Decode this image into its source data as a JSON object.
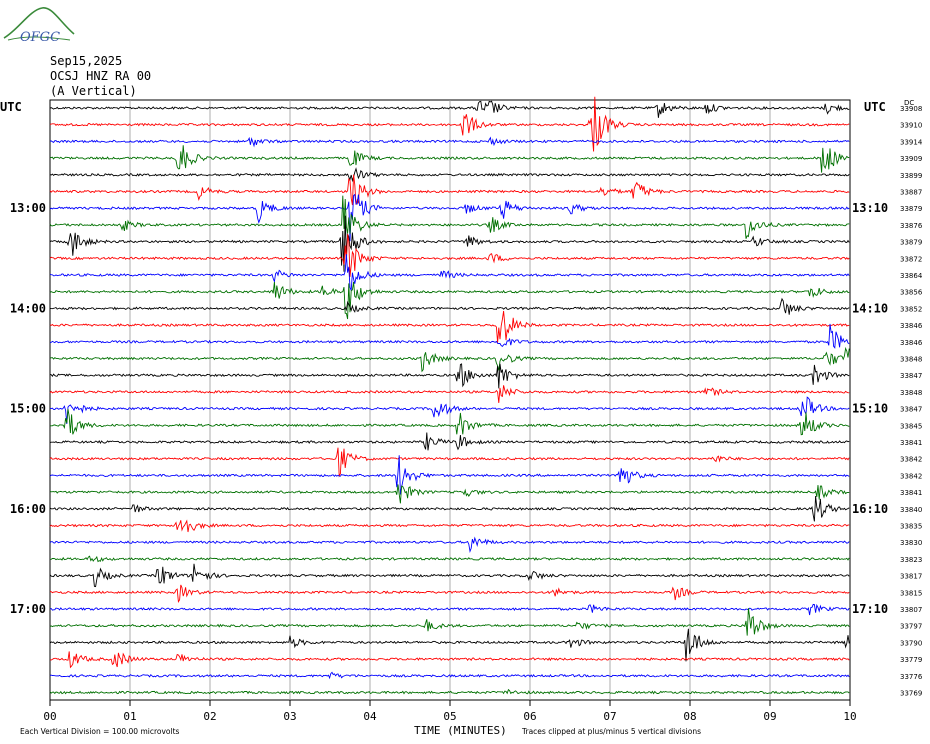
{
  "logo": {
    "text": "OFGC"
  },
  "header": {
    "date": "Sep15,2025",
    "station": "OCSJ HNZ RA 00",
    "component": "(A Vertical)"
  },
  "left_axis_title": "UTC",
  "right_axis_title": "UTC",
  "right_column_label": "DC",
  "footer": {
    "xlabel": "TIME (MINUTES)",
    "vertical_division": "Each Vertical Division =  100.00 microvolts",
    "clip_note": "Traces clipped at plus/minus 5 vertical divisions"
  },
  "colors": {
    "trace_cycle": [
      "#000000",
      "#ff0000",
      "#0000ff",
      "#007000"
    ],
    "grid": "#999999"
  },
  "chart_data": {
    "type": "line",
    "title": "",
    "xlabel": "TIME (MINUTES)",
    "xlim": [
      0,
      10
    ],
    "x_ticks": [
      "00",
      "01",
      "02",
      "03",
      "04",
      "05",
      "06",
      "07",
      "08",
      "09",
      "10"
    ],
    "trace_count": 36,
    "minutes_per_trace": 10,
    "left_time_labels": [
      {
        "trace": 6,
        "label": "13:00"
      },
      {
        "trace": 12,
        "label": "14:00"
      },
      {
        "trace": 18,
        "label": "15:00"
      },
      {
        "trace": 24,
        "label": "16:00"
      },
      {
        "trace": 30,
        "label": "17:00"
      }
    ],
    "right_time_labels": [
      {
        "trace": 6,
        "label": "13:10"
      },
      {
        "trace": 12,
        "label": "14:10"
      },
      {
        "trace": 18,
        "label": "15:10"
      },
      {
        "trace": 24,
        "label": "16:10"
      },
      {
        "trace": 30,
        "label": "17:10"
      }
    ],
    "dc_offsets": [
      "33908",
      "33910",
      "33914",
      "33909",
      "33899",
      "33887",
      "33879",
      "33876",
      "33879",
      "33872",
      "33864",
      "33856",
      "33852",
      "33846",
      "33846",
      "33848",
      "33847",
      "33848",
      "33847",
      "33845",
      "33841",
      "33842",
      "33842",
      "33841",
      "33840",
      "33835",
      "33830",
      "33823",
      "33817",
      "33815",
      "33807",
      "33797",
      "33790",
      "33779",
      "33776",
      "33769"
    ],
    "events": [
      [
        [
          5.35,
          1.2
        ],
        [
          5.5,
          0.8
        ],
        [
          7.6,
          1.2
        ],
        [
          8.2,
          0.8
        ],
        [
          9.7,
          0.8
        ]
      ],
      [
        [
          5.15,
          2.5
        ],
        [
          6.8,
          3.6
        ],
        [
          6.75,
          1.2
        ]
      ],
      [
        [
          2.5,
          0.7
        ],
        [
          5.5,
          0.5
        ]
      ],
      [
        [
          1.6,
          3.0
        ],
        [
          9.65,
          3.2
        ],
        [
          3.75,
          1.5
        ]
      ],
      [
        [
          3.75,
          1.5
        ]
      ],
      [
        [
          1.85,
          1.0
        ],
        [
          3.75,
          3.5
        ],
        [
          7.3,
          1.8
        ],
        [
          6.9,
          0.8
        ]
      ],
      [
        [
          2.6,
          1.8
        ],
        [
          3.75,
          4.5
        ],
        [
          5.65,
          1.5
        ],
        [
          6.5,
          0.8
        ],
        [
          5.2,
          0.7
        ]
      ],
      [
        [
          3.65,
          5.0
        ],
        [
          5.5,
          1.2
        ],
        [
          8.7,
          2.0
        ],
        [
          0.9,
          0.8
        ]
      ],
      [
        [
          0.25,
          2.4
        ],
        [
          3.65,
          5.0
        ],
        [
          5.2,
          1.0
        ],
        [
          8.8,
          0.8
        ]
      ],
      [
        [
          3.7,
          4.0
        ],
        [
          5.5,
          0.8
        ]
      ],
      [
        [
          3.7,
          3.5
        ],
        [
          4.9,
          0.7
        ],
        [
          2.8,
          0.8
        ]
      ],
      [
        [
          3.7,
          4.0
        ],
        [
          2.8,
          1.6
        ],
        [
          3.4,
          0.8
        ],
        [
          9.5,
          1.0
        ]
      ],
      [
        [
          9.15,
          1.5
        ],
        [
          3.7,
          0.8
        ]
      ],
      [
        [
          5.6,
          4.5
        ]
      ],
      [
        [
          9.75,
          2.2
        ],
        [
          5.6,
          1.2
        ]
      ],
      [
        [
          4.65,
          1.7
        ],
        [
          9.7,
          1.5
        ],
        [
          9.95,
          2.0
        ],
        [
          5.6,
          1.5
        ]
      ],
      [
        [
          9.55,
          1.6
        ],
        [
          5.1,
          2.2
        ],
        [
          5.6,
          2.0
        ]
      ],
      [
        [
          8.2,
          0.8
        ],
        [
          5.6,
          1.5
        ]
      ],
      [
        [
          0.2,
          2.2
        ],
        [
          4.8,
          2.0
        ],
        [
          9.4,
          2.5
        ]
      ],
      [
        [
          0.2,
          2.5
        ],
        [
          9.4,
          2.6
        ],
        [
          5.1,
          2.0
        ]
      ],
      [
        [
          4.7,
          1.2
        ],
        [
          5.1,
          1.0
        ]
      ],
      [
        [
          3.6,
          2.4
        ],
        [
          8.3,
          0.5
        ]
      ],
      [
        [
          4.35,
          3.2
        ],
        [
          7.1,
          2.6
        ]
      ],
      [
        [
          4.35,
          2.0
        ],
        [
          5.15,
          0.8
        ],
        [
          9.6,
          1.0
        ]
      ],
      [
        [
          9.55,
          2.4
        ],
        [
          1.0,
          0.8
        ]
      ],
      [
        [
          1.6,
          2.8
        ]
      ],
      [
        [
          5.25,
          1.2
        ]
      ],
      [
        [
          0.5,
          0.5
        ]
      ],
      [
        [
          0.55,
          1.5
        ],
        [
          1.35,
          1.8
        ],
        [
          1.8,
          1.8
        ],
        [
          6.0,
          0.8
        ]
      ],
      [
        [
          1.6,
          1.2
        ],
        [
          7.8,
          1.0
        ],
        [
          6.3,
          0.6
        ]
      ],
      [
        [
          6.75,
          0.6
        ],
        [
          9.5,
          0.8
        ]
      ],
      [
        [
          8.72,
          3.0
        ],
        [
          4.7,
          0.8
        ],
        [
          6.6,
          0.6
        ]
      ],
      [
        [
          7.95,
          3.2
        ],
        [
          3.0,
          0.8
        ],
        [
          6.5,
          0.8
        ],
        [
          9.95,
          1.2
        ]
      ],
      [
        [
          0.25,
          1.3
        ],
        [
          0.8,
          1.6
        ],
        [
          1.6,
          0.8
        ]
      ],
      [
        [
          3.5,
          0.4
        ]
      ],
      [
        [
          5.7,
          0.4
        ]
      ]
    ]
  }
}
